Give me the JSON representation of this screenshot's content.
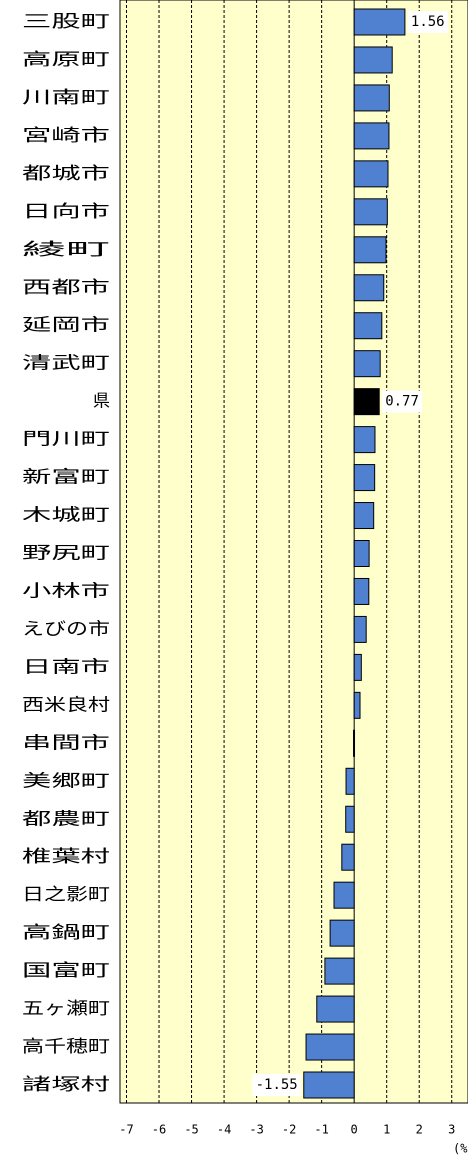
{
  "chart_data": {
    "type": "barh",
    "categories": [
      "三股町",
      "高原町",
      "川南町",
      "宮崎市",
      "都城市",
      "日向市",
      "綾町",
      "西都市",
      "延岡市",
      "清武町",
      "県",
      "門川町",
      "新富町",
      "木城町",
      "野尻町",
      "小林市",
      "えびの市",
      "日南市",
      "西米良村",
      "串間市",
      "美郷町",
      "都農町",
      "椎葉村",
      "日之影町",
      "高鍋町",
      "国富町",
      "五ヶ瀬町",
      "高千穂町",
      "諸塚村"
    ],
    "values": [
      1.56,
      1.17,
      1.08,
      1.07,
      1.04,
      1.02,
      0.98,
      0.91,
      0.85,
      0.8,
      0.77,
      0.64,
      0.63,
      0.6,
      0.46,
      0.45,
      0.37,
      0.22,
      0.18,
      -0.02,
      -0.25,
      -0.26,
      -0.38,
      -0.62,
      -0.74,
      -0.9,
      -1.15,
      -1.48,
      -1.55
    ],
    "value_labels": [
      "1.56",
      null,
      null,
      null,
      null,
      null,
      null,
      null,
      null,
      null,
      "0.77",
      null,
      null,
      null,
      null,
      null,
      null,
      null,
      null,
      null,
      null,
      null,
      null,
      null,
      null,
      null,
      null,
      null,
      "-1.55"
    ],
    "colors": [
      "#4f81d0",
      "#4f81d0",
      "#4f81d0",
      "#4f81d0",
      "#4f81d0",
      "#4f81d0",
      "#4f81d0",
      "#4f81d0",
      "#4f81d0",
      "#4f81d0",
      "#000000",
      "#4f81d0",
      "#4f81d0",
      "#4f81d0",
      "#4f81d0",
      "#4f81d0",
      "#4f81d0",
      "#4f81d0",
      "#4f81d0",
      "#4f81d0",
      "#4f81d0",
      "#4f81d0",
      "#4f81d0",
      "#4f81d0",
      "#4f81d0",
      "#4f81d0",
      "#4f81d0",
      "#4f81d0",
      "#4f81d0"
    ],
    "xlabel": "(%)",
    "xlim": [
      -7.2,
      3.5
    ],
    "xticks": [
      -7,
      -6,
      -5,
      -4,
      -3,
      -2,
      -1,
      0,
      1,
      2,
      3
    ],
    "grid": true
  }
}
